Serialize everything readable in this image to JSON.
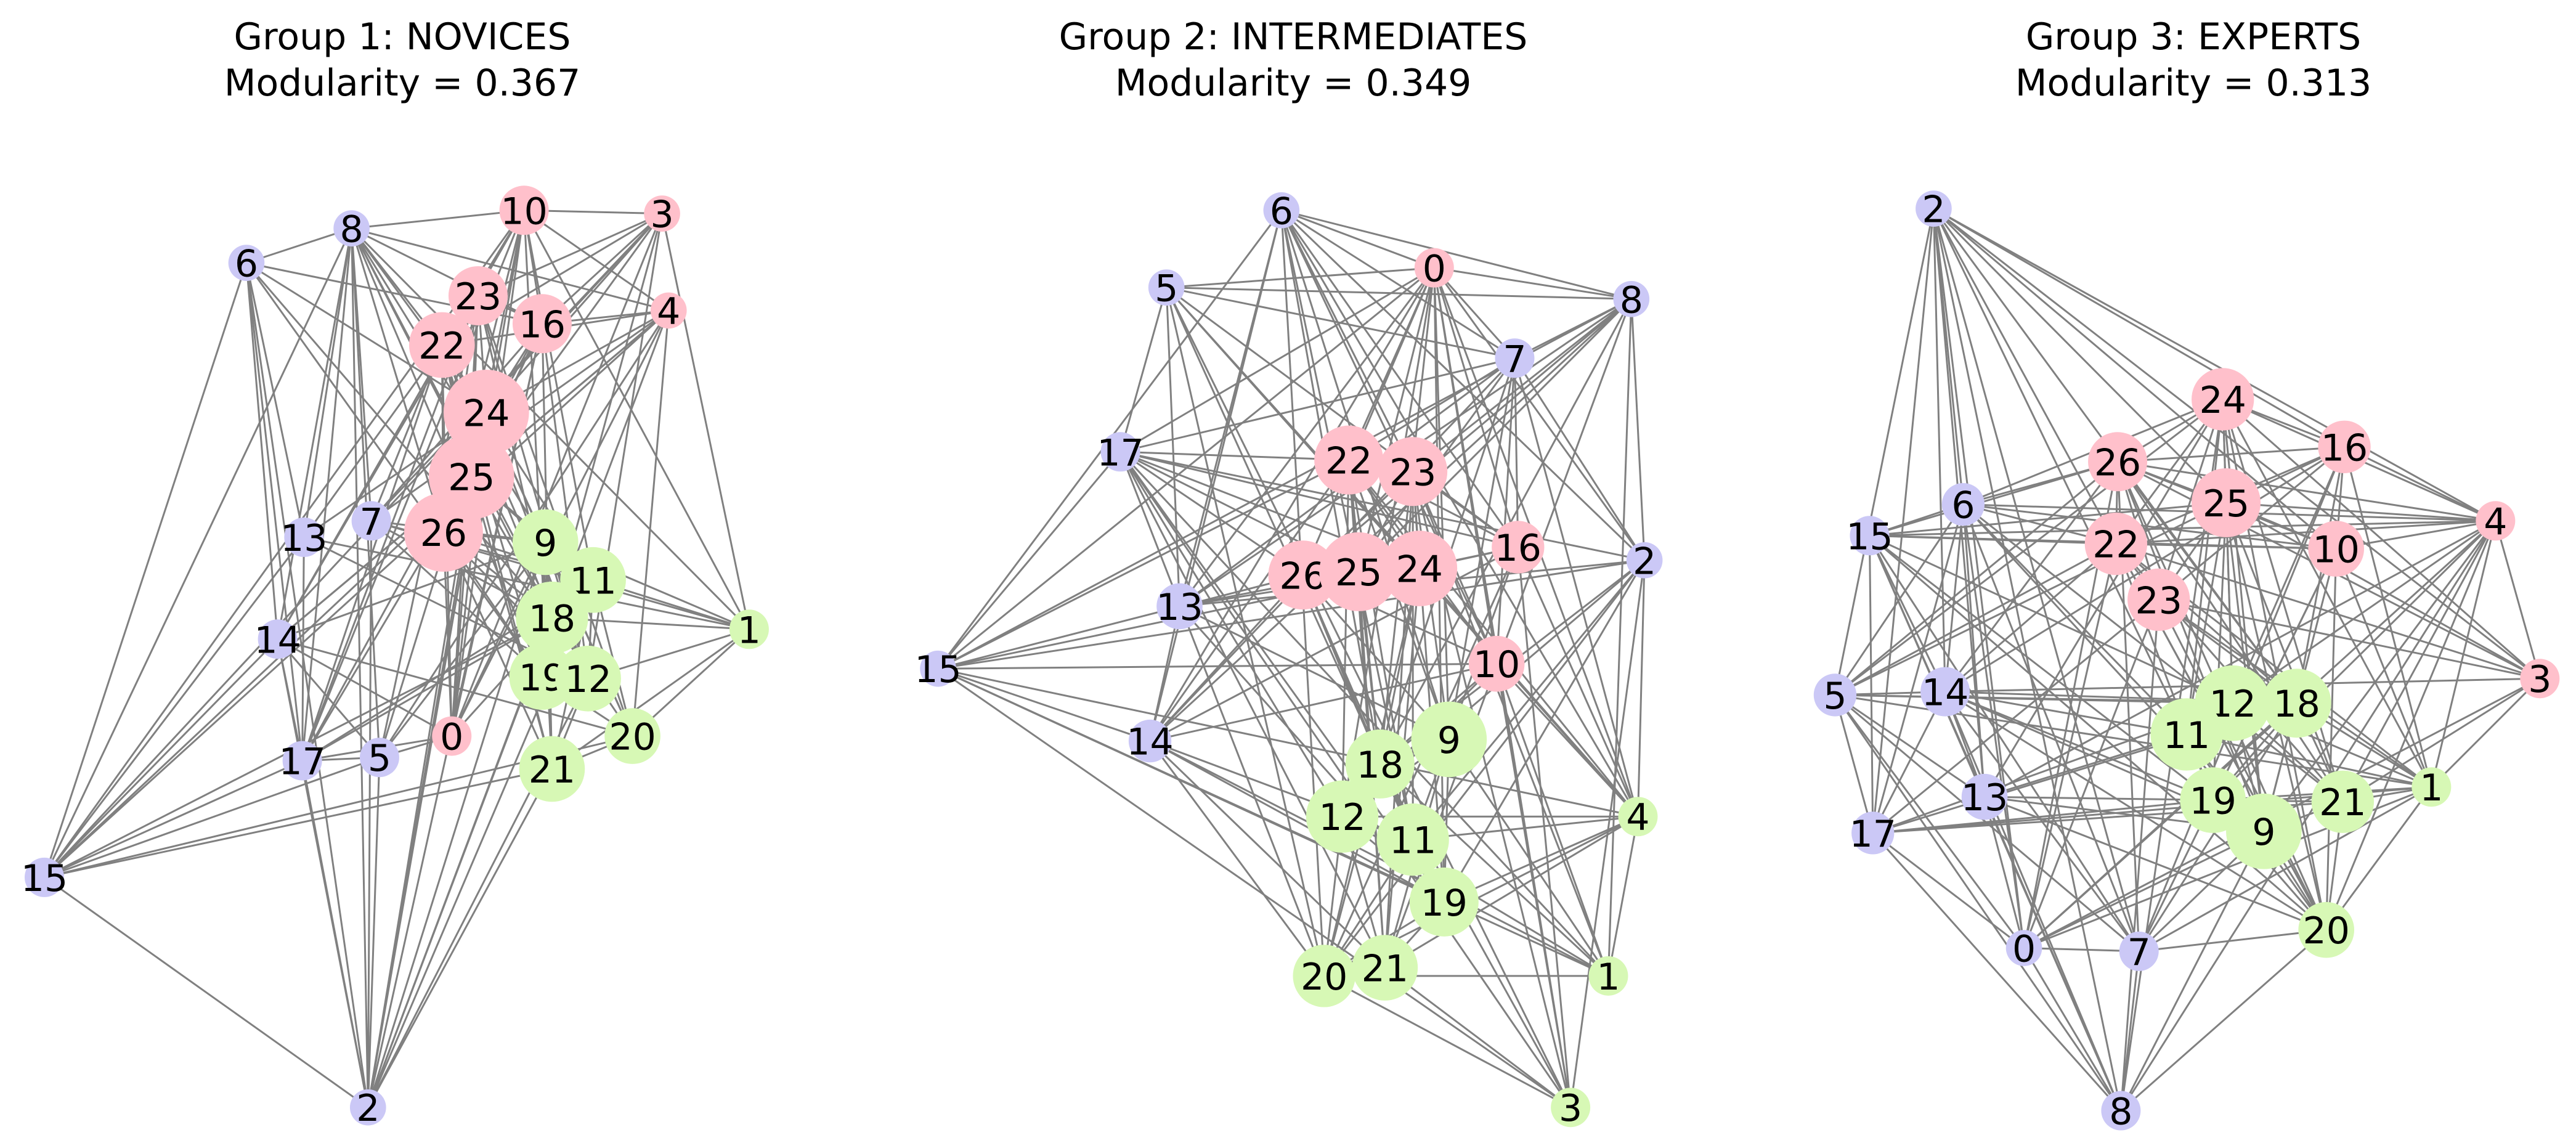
{
  "panels": [
    {
      "title": "Group 1: NOVICES",
      "subtitle": "Modularity = 0.367",
      "nodes": [
        "10",
        "3",
        "8",
        "6",
        "23",
        "16",
        "4",
        "22",
        "24",
        "25",
        "7",
        "13",
        "26",
        "9",
        "11",
        "18",
        "1",
        "14",
        "19",
        "12",
        "20",
        "17",
        "5",
        "0",
        "21",
        "15",
        "2"
      ]
    },
    {
      "title": "Group 2: INTERMEDIATES",
      "subtitle": "Modularity = 0.349",
      "nodes": [
        "6",
        "0",
        "8",
        "5",
        "7",
        "17",
        "22",
        "23",
        "16",
        "2",
        "26",
        "25",
        "24",
        "13",
        "15",
        "10",
        "14",
        "9",
        "18",
        "4",
        "12",
        "11",
        "19",
        "1",
        "20",
        "21",
        "3"
      ]
    },
    {
      "title": "Group 3: EXPERTS",
      "subtitle": "Modularity = 0.313",
      "nodes": [
        "2",
        "24",
        "16",
        "26",
        "6",
        "25",
        "15",
        "4",
        "22",
        "10",
        "23",
        "3",
        "5",
        "14",
        "12",
        "18",
        "11",
        "1",
        "13",
        "19",
        "21",
        "9",
        "17",
        "20",
        "0",
        "7",
        "8"
      ]
    }
  ]
}
